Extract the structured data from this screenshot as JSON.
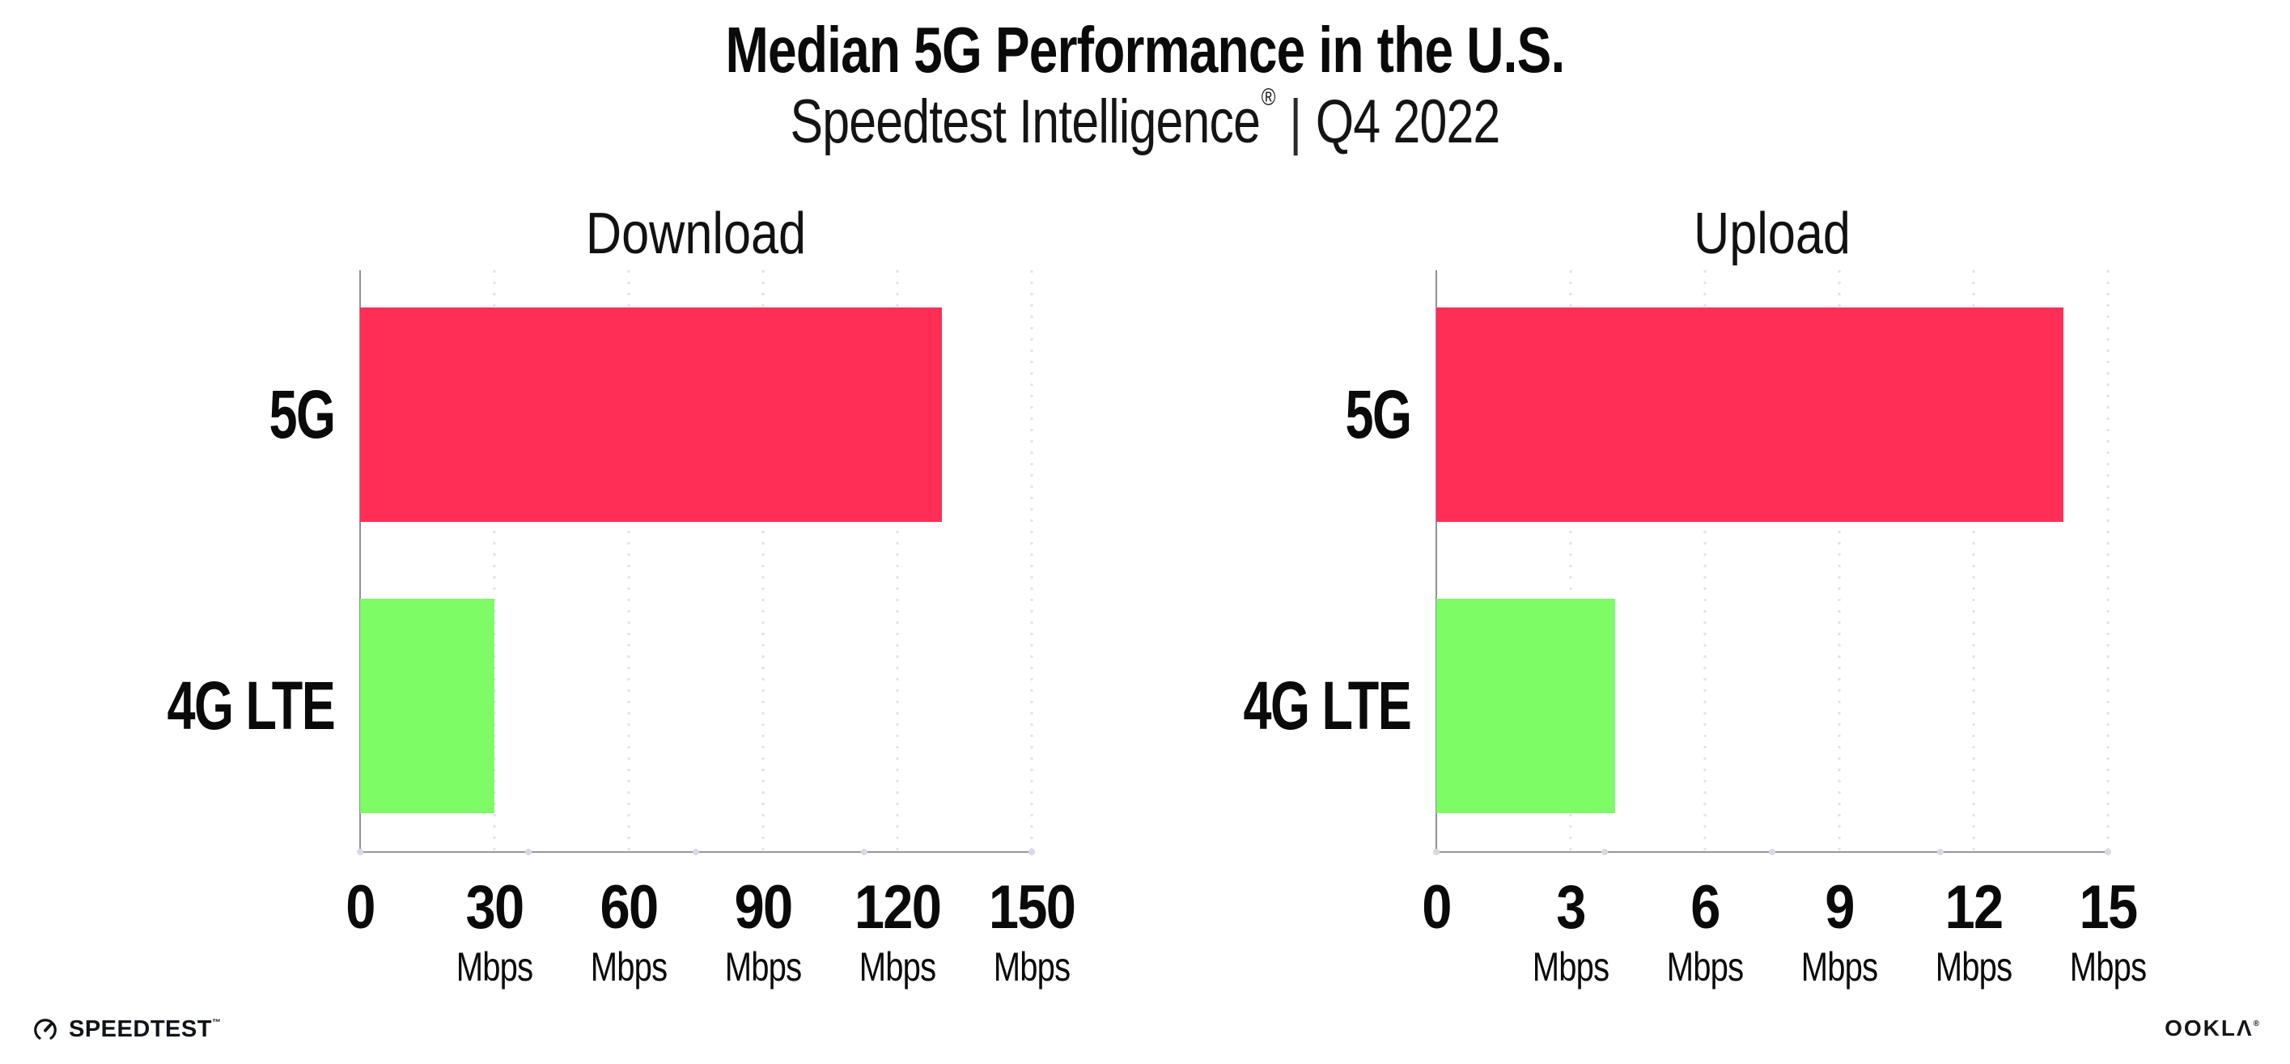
{
  "page": {
    "title": "Median 5G Performance in the U.S.",
    "subtitle": {
      "product": "Speedtest Intelligence",
      "reg_mark": "®",
      "separator": "|",
      "period": "Q4 2022"
    }
  },
  "chart_data": [
    {
      "type": "bar",
      "orientation": "horizontal",
      "title": "Download",
      "categories": [
        "5G",
        "4G LTE"
      ],
      "values": [
        130,
        30
      ],
      "unit": "Mbps",
      "xlim": [
        0,
        150
      ],
      "xticks": [
        0,
        30,
        60,
        90,
        120,
        150
      ],
      "grid": "vertical-dotted",
      "legend": "none",
      "bar_colors": [
        "#FF2E57",
        "#7DFC66"
      ]
    },
    {
      "type": "bar",
      "orientation": "horizontal",
      "title": "Upload",
      "categories": [
        "5G",
        "4G LTE"
      ],
      "values": [
        14,
        4
      ],
      "unit": "Mbps",
      "xlim": [
        0,
        15
      ],
      "xticks": [
        0,
        3,
        6,
        9,
        12,
        15
      ],
      "grid": "vertical-dotted",
      "legend": "none",
      "bar_colors": [
        "#FF2E57",
        "#7DFC66"
      ]
    }
  ],
  "colors": {
    "bar_5g": "#FF2E57",
    "bar_4g_lte": "#7DFC66",
    "gridline": "#E2E2EC",
    "axis": "#96969C",
    "text": "#0A0A0A"
  },
  "footer": {
    "speedtest_logo_text": "SPEEDTEST",
    "speedtest_trademark": "™",
    "ookla_logo_text": "OOK",
    "ookla_logo_text_2": "LΛ",
    "ookla_trademark": "®"
  }
}
